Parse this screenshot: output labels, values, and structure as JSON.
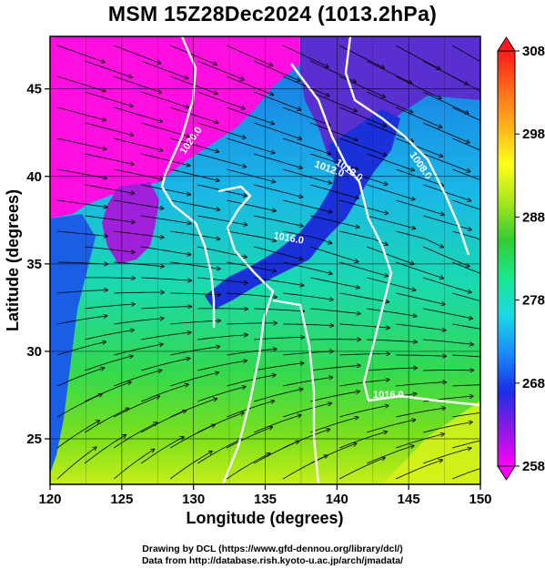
{
  "title": "MSM 15Z28Dec2024 (1013.2hPa)",
  "map": {
    "xlabel": "Longitude (degrees)",
    "ylabel": "Latitude  (degrees)",
    "lon_range": [
      120,
      150
    ],
    "lat_range": [
      22.4,
      48
    ],
    "lon_ticks": [
      "120",
      "125",
      "130",
      "135",
      "140",
      "145",
      "150"
    ],
    "lat_ticks": [
      "25",
      "30",
      "35",
      "40",
      "45"
    ],
    "grid": true,
    "field": "potential temperature shading with wind streamlines",
    "isobar_labels": [
      "1020.0",
      "1012.0",
      "1008.0",
      "1016.0",
      "1016.0",
      "1012.0"
    ],
    "isobar_color": "#ffffff",
    "streamline_color": "#000000"
  },
  "colorbar": {
    "ticks": [
      "308",
      "298",
      "288",
      "278",
      "268",
      "258"
    ],
    "min": 258,
    "max": 308,
    "colors": [
      "#ff00ff",
      "#8a1ae6",
      "#1a2ee6",
      "#1a8cff",
      "#1ad9e6",
      "#1ae68c",
      "#33cc33",
      "#a6e61a",
      "#ffff1a",
      "#ffb31a",
      "#ff6a1a",
      "#ff1a1a"
    ]
  },
  "credits": {
    "line1": "Drawing by DCL (https://www.gfd-dennou.org/library/dcl/)",
    "line2": "Data from http://database.rish.kyoto-u.ac.jp/arch/jmadata/"
  }
}
